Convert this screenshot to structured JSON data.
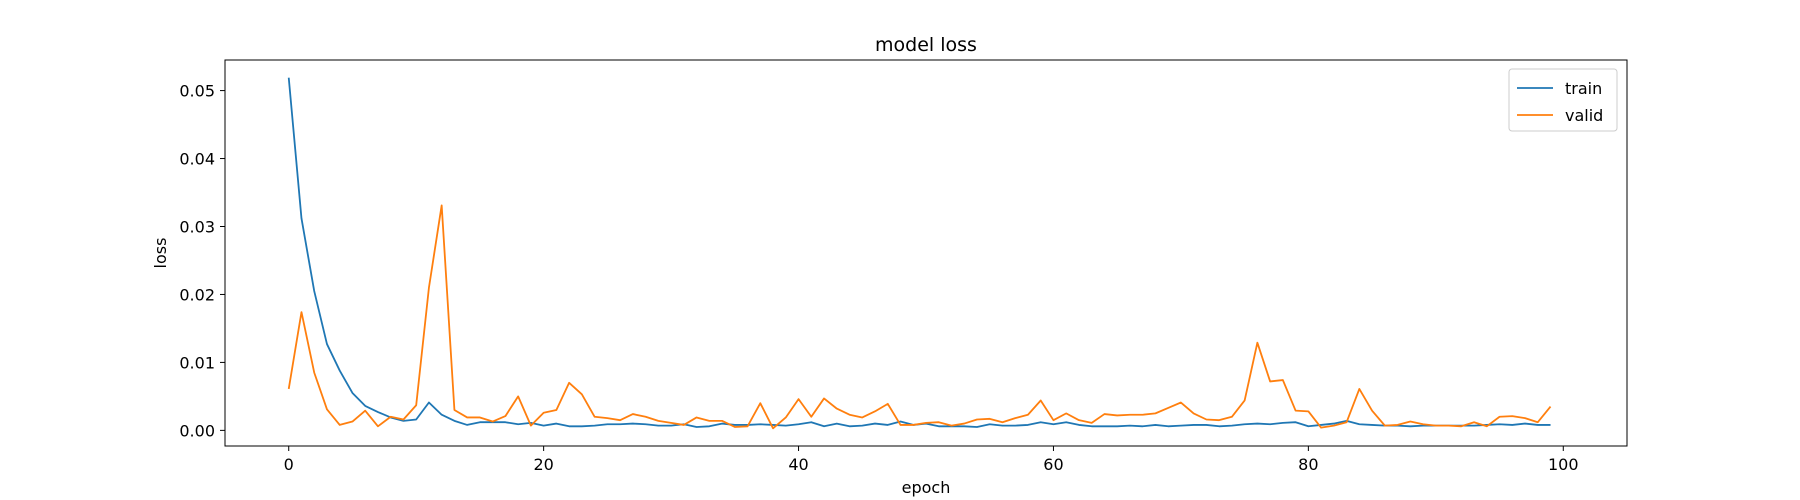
{
  "chart_data": {
    "type": "line",
    "title": "model loss",
    "xlabel": "epoch",
    "ylabel": "loss",
    "xlim": [
      -5,
      105
    ],
    "ylim": [
      -0.0023,
      0.0545
    ],
    "xticks": [
      0,
      20,
      40,
      60,
      80,
      100
    ],
    "yticks": [
      0.0,
      0.01,
      0.02,
      0.03,
      0.04,
      0.05
    ],
    "xtick_labels": [
      "0",
      "20",
      "40",
      "60",
      "80",
      "100"
    ],
    "ytick_labels": [
      "0.00",
      "0.01",
      "0.02",
      "0.03",
      "0.04",
      "0.05"
    ],
    "grid": false,
    "legend_position": "upper right",
    "x": [
      0,
      1,
      2,
      3,
      4,
      5,
      6,
      7,
      8,
      9,
      10,
      11,
      12,
      13,
      14,
      15,
      16,
      17,
      18,
      19,
      20,
      21,
      22,
      23,
      24,
      25,
      26,
      27,
      28,
      29,
      30,
      31,
      32,
      33,
      34,
      35,
      36,
      37,
      38,
      39,
      40,
      41,
      42,
      43,
      44,
      45,
      46,
      47,
      48,
      49,
      50,
      51,
      52,
      53,
      54,
      55,
      56,
      57,
      58,
      59,
      60,
      61,
      62,
      63,
      64,
      65,
      66,
      67,
      68,
      69,
      70,
      71,
      72,
      73,
      74,
      75,
      76,
      77,
      78,
      79,
      80,
      81,
      82,
      83,
      84,
      85,
      86,
      87,
      88,
      89,
      90,
      91,
      92,
      93,
      94,
      95,
      96,
      97,
      98,
      99
    ],
    "series": [
      {
        "name": "train",
        "color": "#1f77b4",
        "values": [
          0.0519,
          0.0312,
          0.0205,
          0.0127,
          0.0088,
          0.0055,
          0.0036,
          0.0027,
          0.0019,
          0.0014,
          0.0016,
          0.0041,
          0.0023,
          0.0014,
          0.0008,
          0.0012,
          0.0012,
          0.0012,
          0.0009,
          0.0011,
          0.0007,
          0.001,
          0.0006,
          0.0006,
          0.0007,
          0.0009,
          0.0009,
          0.001,
          0.0009,
          0.0007,
          0.0007,
          0.0009,
          0.0005,
          0.0006,
          0.001,
          0.0008,
          0.0008,
          0.0009,
          0.0008,
          0.0007,
          0.0009,
          0.0012,
          0.0006,
          0.001,
          0.0006,
          0.0007,
          0.001,
          0.0008,
          0.0013,
          0.0008,
          0.001,
          0.0006,
          0.0006,
          0.0006,
          0.0005,
          0.0009,
          0.0007,
          0.0007,
          0.0008,
          0.0012,
          0.0009,
          0.0012,
          0.0008,
          0.0006,
          0.0006,
          0.0006,
          0.0007,
          0.0006,
          0.0008,
          0.0006,
          0.0007,
          0.0008,
          0.0008,
          0.0006,
          0.0007,
          0.0009,
          0.001,
          0.0009,
          0.0011,
          0.0012,
          0.0006,
          0.0008,
          0.001,
          0.0014,
          0.0009,
          0.0008,
          0.0007,
          0.0007,
          0.0006,
          0.0007,
          0.0007,
          0.0007,
          0.0007,
          0.0007,
          0.0008,
          0.0009,
          0.0008,
          0.001,
          0.0008,
          0.0008
        ]
      },
      {
        "name": "valid",
        "color": "#ff7f0e",
        "values": [
          0.0061,
          0.0174,
          0.0085,
          0.0031,
          0.0008,
          0.0013,
          0.0029,
          0.0006,
          0.002,
          0.0016,
          0.0037,
          0.021,
          0.0331,
          0.003,
          0.0019,
          0.0019,
          0.0013,
          0.0021,
          0.005,
          0.0007,
          0.0026,
          0.003,
          0.007,
          0.0053,
          0.002,
          0.0018,
          0.0015,
          0.0024,
          0.002,
          0.0014,
          0.0011,
          0.0008,
          0.0019,
          0.0014,
          0.0014,
          0.0005,
          0.0006,
          0.004,
          0.0003,
          0.0019,
          0.0046,
          0.002,
          0.0047,
          0.0032,
          0.0023,
          0.0019,
          0.0028,
          0.0039,
          0.0008,
          0.0008,
          0.0011,
          0.0012,
          0.0007,
          0.001,
          0.0016,
          0.0017,
          0.0012,
          0.0018,
          0.0023,
          0.0044,
          0.0015,
          0.0025,
          0.0015,
          0.0011,
          0.0024,
          0.0022,
          0.0023,
          0.0023,
          0.0025,
          0.0033,
          0.0041,
          0.0025,
          0.0016,
          0.0015,
          0.002,
          0.0044,
          0.0129,
          0.0072,
          0.0074,
          0.0029,
          0.0028,
          0.0004,
          0.0007,
          0.0012,
          0.0061,
          0.0029,
          0.0007,
          0.0008,
          0.0013,
          0.0009,
          0.0007,
          0.0007,
          0.0006,
          0.0012,
          0.0006,
          0.002,
          0.0021,
          0.0018,
          0.0012,
          0.0035
        ]
      }
    ]
  }
}
